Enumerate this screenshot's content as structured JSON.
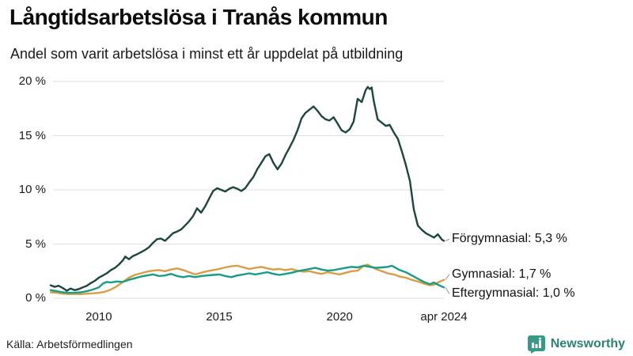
{
  "header": {
    "title": "Långtidsarbetslösa i Tranås kommun",
    "subtitle": "Andel som varit arbetslösa i minst ett år uppdelat på utbildning"
  },
  "footer": {
    "source": "Källa: Arbetsförmedlingen",
    "brand": "Newsworthy",
    "brand_color": "#2e8274",
    "logo_color": "#379a87"
  },
  "chart_data": {
    "type": "line",
    "title": "Långtidsarbetslösa i Tranås kommun",
    "subtitle": "Andel som varit arbetslösa i minst ett år uppdelat på utbildning",
    "xlabel": "",
    "ylabel": "",
    "grid": "horizontal-only",
    "grid_color": "#e3e3e3",
    "x_range": [
      2008.0,
      2024.33
    ],
    "y_range": [
      0,
      20
    ],
    "x_ticks": [
      {
        "value": 2010,
        "label": "2010"
      },
      {
        "value": 2015,
        "label": "2015"
      },
      {
        "value": 2020,
        "label": "2020"
      },
      {
        "value": 2024.33,
        "label": "apr 2024"
      }
    ],
    "y_ticks": [
      {
        "value": 0,
        "label": "0 %"
      },
      {
        "value": 5,
        "label": "5 %"
      },
      {
        "value": 10,
        "label": "10 %"
      },
      {
        "value": 15,
        "label": "15 %"
      },
      {
        "value": 20,
        "label": "20 %"
      }
    ],
    "legend_position": "end-of-line labels, right of plot",
    "connector_color": "#999999",
    "series": [
      {
        "name": "Förgymnasial",
        "end_label": "Förgymnasial: 5,3 %",
        "end_value_text": "5,3 %",
        "color": "#1c463e",
        "label_dy": -2,
        "points": [
          [
            2008.0,
            1.2
          ],
          [
            2008.17,
            1.05
          ],
          [
            2008.33,
            1.15
          ],
          [
            2008.5,
            0.95
          ],
          [
            2008.67,
            0.7
          ],
          [
            2008.83,
            0.9
          ],
          [
            2009.0,
            0.75
          ],
          [
            2009.17,
            0.85
          ],
          [
            2009.33,
            1.0
          ],
          [
            2009.5,
            1.15
          ],
          [
            2009.67,
            1.4
          ],
          [
            2009.83,
            1.6
          ],
          [
            2010.0,
            1.9
          ],
          [
            2010.17,
            2.1
          ],
          [
            2010.33,
            2.3
          ],
          [
            2010.5,
            2.6
          ],
          [
            2010.67,
            2.8
          ],
          [
            2010.83,
            3.1
          ],
          [
            2011.0,
            3.5
          ],
          [
            2011.1,
            3.85
          ],
          [
            2011.25,
            3.6
          ],
          [
            2011.42,
            3.9
          ],
          [
            2011.58,
            4.05
          ],
          [
            2011.75,
            4.25
          ],
          [
            2011.92,
            4.45
          ],
          [
            2012.08,
            4.7
          ],
          [
            2012.25,
            5.1
          ],
          [
            2012.42,
            5.45
          ],
          [
            2012.58,
            5.5
          ],
          [
            2012.75,
            5.3
          ],
          [
            2012.92,
            5.65
          ],
          [
            2013.08,
            6.0
          ],
          [
            2013.25,
            6.15
          ],
          [
            2013.42,
            6.35
          ],
          [
            2013.58,
            6.7
          ],
          [
            2013.75,
            7.1
          ],
          [
            2013.92,
            7.6
          ],
          [
            2014.08,
            8.3
          ],
          [
            2014.25,
            7.9
          ],
          [
            2014.42,
            8.5
          ],
          [
            2014.58,
            9.2
          ],
          [
            2014.75,
            9.9
          ],
          [
            2014.92,
            10.15
          ],
          [
            2015.08,
            10.0
          ],
          [
            2015.25,
            9.85
          ],
          [
            2015.42,
            10.1
          ],
          [
            2015.58,
            10.25
          ],
          [
            2015.75,
            10.1
          ],
          [
            2015.92,
            9.9
          ],
          [
            2016.08,
            10.15
          ],
          [
            2016.25,
            10.7
          ],
          [
            2016.42,
            11.2
          ],
          [
            2016.58,
            11.9
          ],
          [
            2016.75,
            12.5
          ],
          [
            2016.92,
            13.1
          ],
          [
            2017.08,
            13.3
          ],
          [
            2017.25,
            12.5
          ],
          [
            2017.42,
            11.9
          ],
          [
            2017.58,
            12.4
          ],
          [
            2017.75,
            13.2
          ],
          [
            2017.92,
            13.9
          ],
          [
            2018.08,
            14.6
          ],
          [
            2018.25,
            15.5
          ],
          [
            2018.42,
            16.6
          ],
          [
            2018.58,
            17.1
          ],
          [
            2018.75,
            17.4
          ],
          [
            2018.92,
            17.7
          ],
          [
            2019.08,
            17.3
          ],
          [
            2019.25,
            16.8
          ],
          [
            2019.42,
            16.5
          ],
          [
            2019.58,
            16.4
          ],
          [
            2019.75,
            16.7
          ],
          [
            2019.92,
            16.1
          ],
          [
            2020.08,
            15.5
          ],
          [
            2020.25,
            15.3
          ],
          [
            2020.42,
            15.6
          ],
          [
            2020.58,
            16.3
          ],
          [
            2020.75,
            18.4
          ],
          [
            2020.92,
            18.1
          ],
          [
            2021.08,
            19.2
          ],
          [
            2021.17,
            19.5
          ],
          [
            2021.25,
            19.3
          ],
          [
            2021.33,
            19.45
          ],
          [
            2021.42,
            18.2
          ],
          [
            2021.58,
            16.5
          ],
          [
            2021.75,
            16.2
          ],
          [
            2021.92,
            15.9
          ],
          [
            2022.08,
            16.0
          ],
          [
            2022.25,
            15.3
          ],
          [
            2022.42,
            14.7
          ],
          [
            2022.58,
            13.6
          ],
          [
            2022.75,
            12.3
          ],
          [
            2022.92,
            10.8
          ],
          [
            2023.08,
            8.2
          ],
          [
            2023.25,
            6.7
          ],
          [
            2023.42,
            6.3
          ],
          [
            2023.58,
            6.0
          ],
          [
            2023.75,
            5.8
          ],
          [
            2023.92,
            5.6
          ],
          [
            2024.08,
            5.9
          ],
          [
            2024.25,
            5.4
          ],
          [
            2024.33,
            5.3
          ]
        ]
      },
      {
        "name": "Gymnasial",
        "end_label": "Gymnasial: 1,7 %",
        "end_value_text": "1,7 %",
        "color": "#d89e45",
        "label_dy": -7,
        "points": [
          [
            2008.0,
            0.55
          ],
          [
            2008.25,
            0.5
          ],
          [
            2008.5,
            0.42
          ],
          [
            2008.75,
            0.38
          ],
          [
            2009.0,
            0.4
          ],
          [
            2009.25,
            0.38
          ],
          [
            2009.5,
            0.42
          ],
          [
            2009.75,
            0.45
          ],
          [
            2010.0,
            0.5
          ],
          [
            2010.25,
            0.6
          ],
          [
            2010.5,
            0.8
          ],
          [
            2010.75,
            1.1
          ],
          [
            2011.0,
            1.5
          ],
          [
            2011.25,
            1.9
          ],
          [
            2011.5,
            2.15
          ],
          [
            2011.75,
            2.3
          ],
          [
            2012.0,
            2.45
          ],
          [
            2012.25,
            2.55
          ],
          [
            2012.5,
            2.6
          ],
          [
            2012.75,
            2.5
          ],
          [
            2013.0,
            2.65
          ],
          [
            2013.25,
            2.75
          ],
          [
            2013.5,
            2.6
          ],
          [
            2013.75,
            2.4
          ],
          [
            2014.0,
            2.2
          ],
          [
            2014.25,
            2.35
          ],
          [
            2014.5,
            2.5
          ],
          [
            2014.75,
            2.6
          ],
          [
            2015.0,
            2.7
          ],
          [
            2015.25,
            2.85
          ],
          [
            2015.5,
            2.95
          ],
          [
            2015.75,
            3.0
          ],
          [
            2016.0,
            2.85
          ],
          [
            2016.25,
            2.7
          ],
          [
            2016.5,
            2.8
          ],
          [
            2016.75,
            2.9
          ],
          [
            2017.0,
            2.75
          ],
          [
            2017.25,
            2.65
          ],
          [
            2017.5,
            2.7
          ],
          [
            2017.75,
            2.6
          ],
          [
            2018.0,
            2.7
          ],
          [
            2018.25,
            2.55
          ],
          [
            2018.5,
            2.45
          ],
          [
            2018.75,
            2.5
          ],
          [
            2019.0,
            2.35
          ],
          [
            2019.25,
            2.25
          ],
          [
            2019.5,
            2.4
          ],
          [
            2019.75,
            2.3
          ],
          [
            2020.0,
            2.2
          ],
          [
            2020.25,
            2.35
          ],
          [
            2020.5,
            2.5
          ],
          [
            2020.75,
            2.55
          ],
          [
            2021.0,
            3.0
          ],
          [
            2021.17,
            3.1
          ],
          [
            2021.33,
            2.9
          ],
          [
            2021.5,
            2.7
          ],
          [
            2021.75,
            2.5
          ],
          [
            2022.0,
            2.3
          ],
          [
            2022.25,
            2.2
          ],
          [
            2022.5,
            2.0
          ],
          [
            2022.75,
            1.9
          ],
          [
            2023.0,
            1.7
          ],
          [
            2023.25,
            1.55
          ],
          [
            2023.5,
            1.35
          ],
          [
            2023.75,
            1.2
          ],
          [
            2023.92,
            1.25
          ],
          [
            2024.08,
            1.45
          ],
          [
            2024.33,
            1.7
          ]
        ]
      },
      {
        "name": "Eftergymnasial",
        "end_label": "Eftergymnasial: 1,0 %",
        "end_value_text": "1,0 %",
        "color": "#169d85",
        "label_dy": 8,
        "points": [
          [
            2008.0,
            0.75
          ],
          [
            2008.25,
            0.65
          ],
          [
            2008.5,
            0.55
          ],
          [
            2008.75,
            0.5
          ],
          [
            2009.0,
            0.52
          ],
          [
            2009.25,
            0.55
          ],
          [
            2009.5,
            0.65
          ],
          [
            2009.75,
            0.8
          ],
          [
            2010.0,
            1.0
          ],
          [
            2010.17,
            1.35
          ],
          [
            2010.33,
            1.5
          ],
          [
            2010.5,
            1.45
          ],
          [
            2010.75,
            1.55
          ],
          [
            2011.0,
            1.5
          ],
          [
            2011.25,
            1.7
          ],
          [
            2011.5,
            1.85
          ],
          [
            2011.75,
            2.0
          ],
          [
            2012.0,
            2.1
          ],
          [
            2012.25,
            2.2
          ],
          [
            2012.5,
            2.05
          ],
          [
            2012.75,
            2.1
          ],
          [
            2013.0,
            2.25
          ],
          [
            2013.25,
            2.05
          ],
          [
            2013.5,
            1.95
          ],
          [
            2013.75,
            2.05
          ],
          [
            2014.0,
            1.95
          ],
          [
            2014.25,
            2.05
          ],
          [
            2014.5,
            2.1
          ],
          [
            2014.75,
            2.15
          ],
          [
            2015.0,
            2.2
          ],
          [
            2015.25,
            2.05
          ],
          [
            2015.5,
            1.95
          ],
          [
            2015.75,
            2.1
          ],
          [
            2016.0,
            2.2
          ],
          [
            2016.25,
            2.3
          ],
          [
            2016.5,
            2.2
          ],
          [
            2016.75,
            2.3
          ],
          [
            2017.0,
            2.4
          ],
          [
            2017.25,
            2.25
          ],
          [
            2017.5,
            2.15
          ],
          [
            2017.75,
            2.25
          ],
          [
            2018.0,
            2.35
          ],
          [
            2018.25,
            2.5
          ],
          [
            2018.5,
            2.6
          ],
          [
            2018.75,
            2.7
          ],
          [
            2019.0,
            2.8
          ],
          [
            2019.25,
            2.65
          ],
          [
            2019.5,
            2.55
          ],
          [
            2019.75,
            2.6
          ],
          [
            2020.0,
            2.7
          ],
          [
            2020.25,
            2.8
          ],
          [
            2020.5,
            2.9
          ],
          [
            2020.75,
            2.85
          ],
          [
            2021.0,
            3.0
          ],
          [
            2021.25,
            2.9
          ],
          [
            2021.5,
            2.8
          ],
          [
            2021.75,
            2.85
          ],
          [
            2022.0,
            2.9
          ],
          [
            2022.17,
            3.0
          ],
          [
            2022.33,
            2.8
          ],
          [
            2022.5,
            2.6
          ],
          [
            2022.75,
            2.4
          ],
          [
            2023.0,
            2.1
          ],
          [
            2023.25,
            1.8
          ],
          [
            2023.5,
            1.5
          ],
          [
            2023.75,
            1.3
          ],
          [
            2023.92,
            1.45
          ],
          [
            2024.08,
            1.25
          ],
          [
            2024.33,
            1.0
          ]
        ]
      }
    ]
  }
}
